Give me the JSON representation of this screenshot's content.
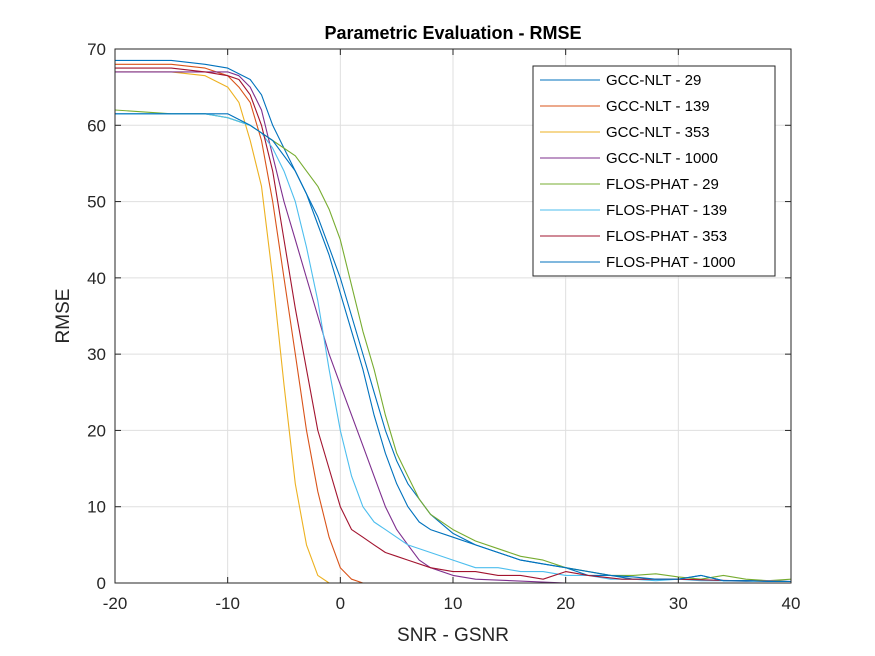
{
  "chart_data": {
    "type": "line",
    "title": "Parametric Evaluation - RMSE",
    "xlabel": "SNR - GSNR",
    "ylabel": "RMSE",
    "xlim": [
      -20,
      40
    ],
    "ylim": [
      0,
      70
    ],
    "xticks": [
      "-20",
      "-10",
      "0",
      "10",
      "20",
      "30",
      "40"
    ],
    "yticks": [
      "0",
      "10",
      "20",
      "30",
      "40",
      "50",
      "60",
      "70"
    ],
    "grid": true,
    "legend_position": "top-right",
    "series": [
      {
        "name": "GCC-NLT - 29",
        "color": "#0072BD",
        "x": [
          -20,
          -15,
          -12,
          -10,
          -8,
          -7,
          -6,
          -5,
          -4,
          -3,
          -2,
          -1,
          0,
          1,
          2,
          3,
          4,
          5,
          6,
          7,
          8,
          10,
          12,
          14,
          16,
          18,
          20,
          22,
          24,
          26,
          28,
          30,
          32,
          34,
          36,
          38,
          40
        ],
        "y": [
          68.5,
          68.5,
          68,
          67.5,
          66,
          64,
          60,
          57,
          54,
          51,
          48,
          44,
          40,
          35,
          30,
          25,
          20,
          16,
          13,
          11,
          9,
          6.5,
          5,
          4,
          3,
          2.5,
          2,
          1,
          1,
          0.5,
          0.5,
          0.5,
          1,
          0.3,
          0.3,
          0.3,
          0.2
        ]
      },
      {
        "name": "GCC-NLT - 139",
        "color": "#D95319",
        "x": [
          -20,
          -15,
          -12,
          -10,
          -9,
          -8,
          -7,
          -6,
          -5,
          -4,
          -3,
          -2,
          -1,
          0,
          1,
          2,
          3,
          4,
          6,
          10,
          20,
          30,
          40
        ],
        "y": [
          68,
          68,
          67.5,
          66.5,
          65,
          63,
          58,
          50,
          40,
          30,
          20,
          12,
          6,
          2,
          0.5,
          0,
          0,
          0,
          0,
          0,
          0,
          0,
          0
        ]
      },
      {
        "name": "GCC-NLT - 353",
        "color": "#EDB120",
        "x": [
          -20,
          -15,
          -12,
          -10,
          -9,
          -8,
          -7,
          -6,
          -5,
          -4,
          -3,
          -2,
          -1,
          0,
          1,
          5,
          10,
          20,
          30,
          40
        ],
        "y": [
          67,
          67,
          66.5,
          65,
          63,
          58,
          52,
          40,
          26,
          13,
          5,
          1,
          0,
          0,
          0,
          0,
          0,
          0,
          0,
          0
        ]
      },
      {
        "name": "GCC-NLT - 1000",
        "color": "#7E2F8E",
        "x": [
          -20,
          -15,
          -12,
          -10,
          -9,
          -8,
          -7,
          -6,
          -5,
          -4,
          -3,
          -2,
          -1,
          0,
          1,
          2,
          3,
          4,
          5,
          6,
          7,
          8,
          10,
          12,
          20,
          30,
          40
        ],
        "y": [
          67,
          67,
          67,
          67,
          66.5,
          65,
          62,
          56,
          50,
          45,
          40,
          35,
          30,
          26,
          22,
          18,
          14,
          10,
          7,
          5,
          3,
          2,
          1,
          0.5,
          0,
          0,
          0
        ]
      },
      {
        "name": "FLOS-PHAT - 29",
        "color": "#77AC30",
        "x": [
          -20,
          -15,
          -12,
          -10,
          -8,
          -6,
          -4,
          -3,
          -2,
          -1,
          0,
          1,
          2,
          3,
          4,
          5,
          6,
          7,
          8,
          10,
          12,
          14,
          16,
          18,
          20,
          22,
          24,
          26,
          28,
          30,
          32,
          34,
          36,
          38,
          40
        ],
        "y": [
          62,
          61.5,
          61.5,
          61,
          60,
          58,
          56,
          54,
          52,
          49,
          45,
          39,
          33,
          28,
          22,
          17,
          14,
          11,
          9,
          7,
          5.5,
          4.5,
          3.5,
          3,
          2,
          1.5,
          1,
          1,
          1.2,
          0.8,
          0.5,
          1,
          0.5,
          0.3,
          0.5
        ]
      },
      {
        "name": "FLOS-PHAT - 139",
        "color": "#4DBEEE",
        "x": [
          -20,
          -15,
          -12,
          -10,
          -8,
          -7,
          -6,
          -5,
          -4,
          -3,
          -2,
          -1,
          0,
          1,
          2,
          3,
          4,
          6,
          8,
          10,
          12,
          14,
          16,
          18,
          20,
          22,
          24,
          26,
          28,
          30,
          32,
          34,
          36,
          38,
          40
        ],
        "y": [
          61.5,
          61.5,
          61.5,
          61,
          60,
          59,
          57,
          54,
          50,
          44,
          37,
          28,
          20,
          14,
          10,
          8,
          7,
          5,
          4,
          3,
          2,
          2,
          1.5,
          1.5,
          1,
          1,
          0.5,
          0.5,
          0.3,
          0.5,
          0.3,
          0.3,
          0.2,
          0.3,
          0.2
        ]
      },
      {
        "name": "FLOS-PHAT - 353",
        "color": "#A2142F",
        "x": [
          -20,
          -15,
          -12,
          -10,
          -9,
          -8,
          -7,
          -6,
          -5,
          -4,
          -3,
          -2,
          -1,
          0,
          1,
          2,
          3,
          4,
          5,
          6,
          8,
          10,
          12,
          14,
          16,
          18,
          20,
          22,
          25,
          30,
          35,
          40
        ],
        "y": [
          67.5,
          67.5,
          67,
          66.5,
          66,
          64,
          60,
          54,
          45,
          36,
          28,
          20,
          15,
          10,
          7,
          6,
          5,
          4,
          3.5,
          3,
          2,
          1.5,
          1.5,
          1,
          1,
          0.5,
          1.5,
          1,
          0.5,
          0.5,
          0.3,
          0.2
        ]
      },
      {
        "name": "FLOS-PHAT - 1000",
        "color": "#0072BD",
        "x": [
          -20,
          -15,
          -12,
          -10,
          -8,
          -6,
          -4,
          -3,
          -2,
          -1,
          0,
          1,
          2,
          3,
          4,
          5,
          6,
          7,
          8,
          10,
          12,
          14,
          16,
          18,
          20,
          22,
          24,
          26,
          28,
          30,
          32,
          34,
          36,
          38,
          40
        ],
        "y": [
          61.5,
          61.5,
          61.5,
          61.5,
          60,
          58,
          54,
          51,
          47,
          43,
          38,
          33,
          28,
          22,
          17,
          13,
          10,
          8,
          7,
          6,
          5,
          4,
          3,
          2.5,
          2,
          1.5,
          1,
          0.8,
          0.5,
          0.5,
          1,
          0.3,
          0.3,
          0.2,
          0.2
        ]
      }
    ]
  }
}
